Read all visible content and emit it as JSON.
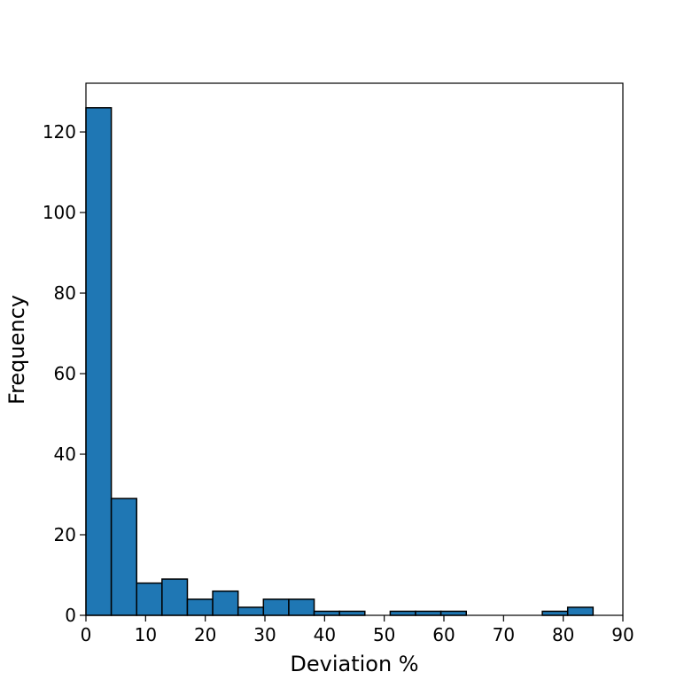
{
  "chart_data": {
    "type": "histogram",
    "xlabel": "Deviation %",
    "ylabel": "Frequency",
    "bins": [
      0,
      4.25,
      8.5,
      12.75,
      17,
      21.25,
      25.5,
      29.75,
      34,
      38.25,
      42.5,
      46.75,
      51,
      55.25,
      59.5,
      63.75,
      68,
      72.25,
      76.5,
      80.75,
      85
    ],
    "values": [
      126,
      29,
      8,
      9,
      4,
      6,
      2,
      4,
      4,
      1,
      1,
      0,
      1,
      1,
      1,
      0,
      0,
      0,
      1,
      2
    ],
    "color": "#1f77b4",
    "xlim": [
      0,
      90
    ],
    "xticks": [
      0,
      10,
      20,
      30,
      40,
      50,
      60,
      70,
      80,
      90
    ],
    "ylim": [
      0,
      132.1
    ],
    "yticks": [
      0,
      20,
      40,
      60,
      80,
      100,
      120
    ]
  }
}
